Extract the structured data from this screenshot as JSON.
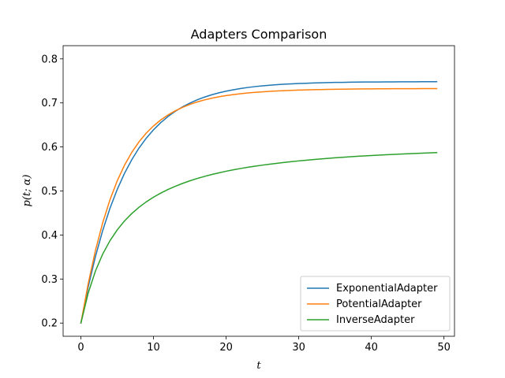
{
  "chart_data": {
    "type": "line",
    "title": "Adapters Comparison",
    "xlabel": "t",
    "ylabel": "p(t; α)",
    "xlim": [
      -2.45,
      51.45
    ],
    "ylim": [
      0.17,
      0.83
    ],
    "xticks": [
      0,
      10,
      20,
      30,
      40,
      50
    ],
    "yticks": [
      0.2,
      0.3,
      0.4,
      0.5,
      0.6,
      0.7,
      0.8
    ],
    "grid": false,
    "legend_position": "lower-right",
    "x": [
      0,
      1,
      2,
      3,
      4,
      5,
      6,
      7,
      8,
      9,
      10,
      11,
      12,
      13,
      14,
      15,
      16,
      17,
      18,
      19,
      20,
      21,
      22,
      23,
      24,
      25,
      26,
      27,
      28,
      29,
      30,
      31,
      32,
      33,
      34,
      35,
      36,
      37,
      38,
      39,
      40,
      41,
      42,
      43,
      44,
      45,
      46,
      47,
      48,
      49
    ],
    "series": [
      {
        "name": "ExponentialAdapter",
        "color": "#1f77b4",
        "values": [
          0.2,
          0.2816,
          0.3511,
          0.4102,
          0.4606,
          0.5034,
          0.5399,
          0.5709,
          0.5974,
          0.6199,
          0.639,
          0.6553,
          0.6692,
          0.681,
          0.6911,
          0.6996,
          0.7069,
          0.7131,
          0.7184,
          0.7229,
          0.7267,
          0.7299,
          0.7327,
          0.7351,
          0.7371,
          0.7388,
          0.7402,
          0.7414,
          0.7425,
          0.7433,
          0.7441,
          0.7447,
          0.7453,
          0.7457,
          0.7461,
          0.7465,
          0.7467,
          0.747,
          0.7472,
          0.7474,
          0.7475,
          0.7476,
          0.7477,
          0.7478,
          0.7479,
          0.748,
          0.748,
          0.7481,
          0.7481,
          0.7481
        ]
      },
      {
        "name": "PotentialAdapter",
        "color": "#ff7f0e",
        "values": [
          0.2,
          0.2892,
          0.3648,
          0.4278,
          0.48,
          0.523,
          0.5584,
          0.5876,
          0.6117,
          0.6315,
          0.6478,
          0.6614,
          0.6727,
          0.6821,
          0.69,
          0.6966,
          0.7021,
          0.7067,
          0.7106,
          0.7139,
          0.7166,
          0.7189,
          0.7209,
          0.7226,
          0.724,
          0.7252,
          0.7262,
          0.7271,
          0.7279,
          0.7285,
          0.7291,
          0.7296,
          0.73,
          0.7304,
          0.7307,
          0.731,
          0.7312,
          0.7314,
          0.7316,
          0.7318,
          0.7319,
          0.732,
          0.7321,
          0.7322,
          0.7323,
          0.7324,
          0.7324,
          0.7325,
          0.7325,
          0.7326
        ]
      },
      {
        "name": "InverseAdapter",
        "color": "#2ca02c",
        "values": [
          0.2,
          0.268,
          0.3182,
          0.3566,
          0.387,
          0.4116,
          0.4318,
          0.4487,
          0.463,
          0.4753,
          0.4859,
          0.4952,
          0.5034,
          0.5107,
          0.5172,
          0.523,
          0.5283,
          0.533,
          0.5373,
          0.5412,
          0.5448,
          0.5481,
          0.5511,
          0.5538,
          0.5563,
          0.5587,
          0.5609,
          0.5629,
          0.5648,
          0.5666,
          0.5683,
          0.5698,
          0.5713,
          0.5727,
          0.574,
          0.5753,
          0.5764,
          0.5775,
          0.5786,
          0.5796,
          0.5805,
          0.5814,
          0.5822,
          0.583,
          0.5838,
          0.5845,
          0.5852,
          0.5859,
          0.5865,
          0.5871
        ]
      }
    ]
  }
}
